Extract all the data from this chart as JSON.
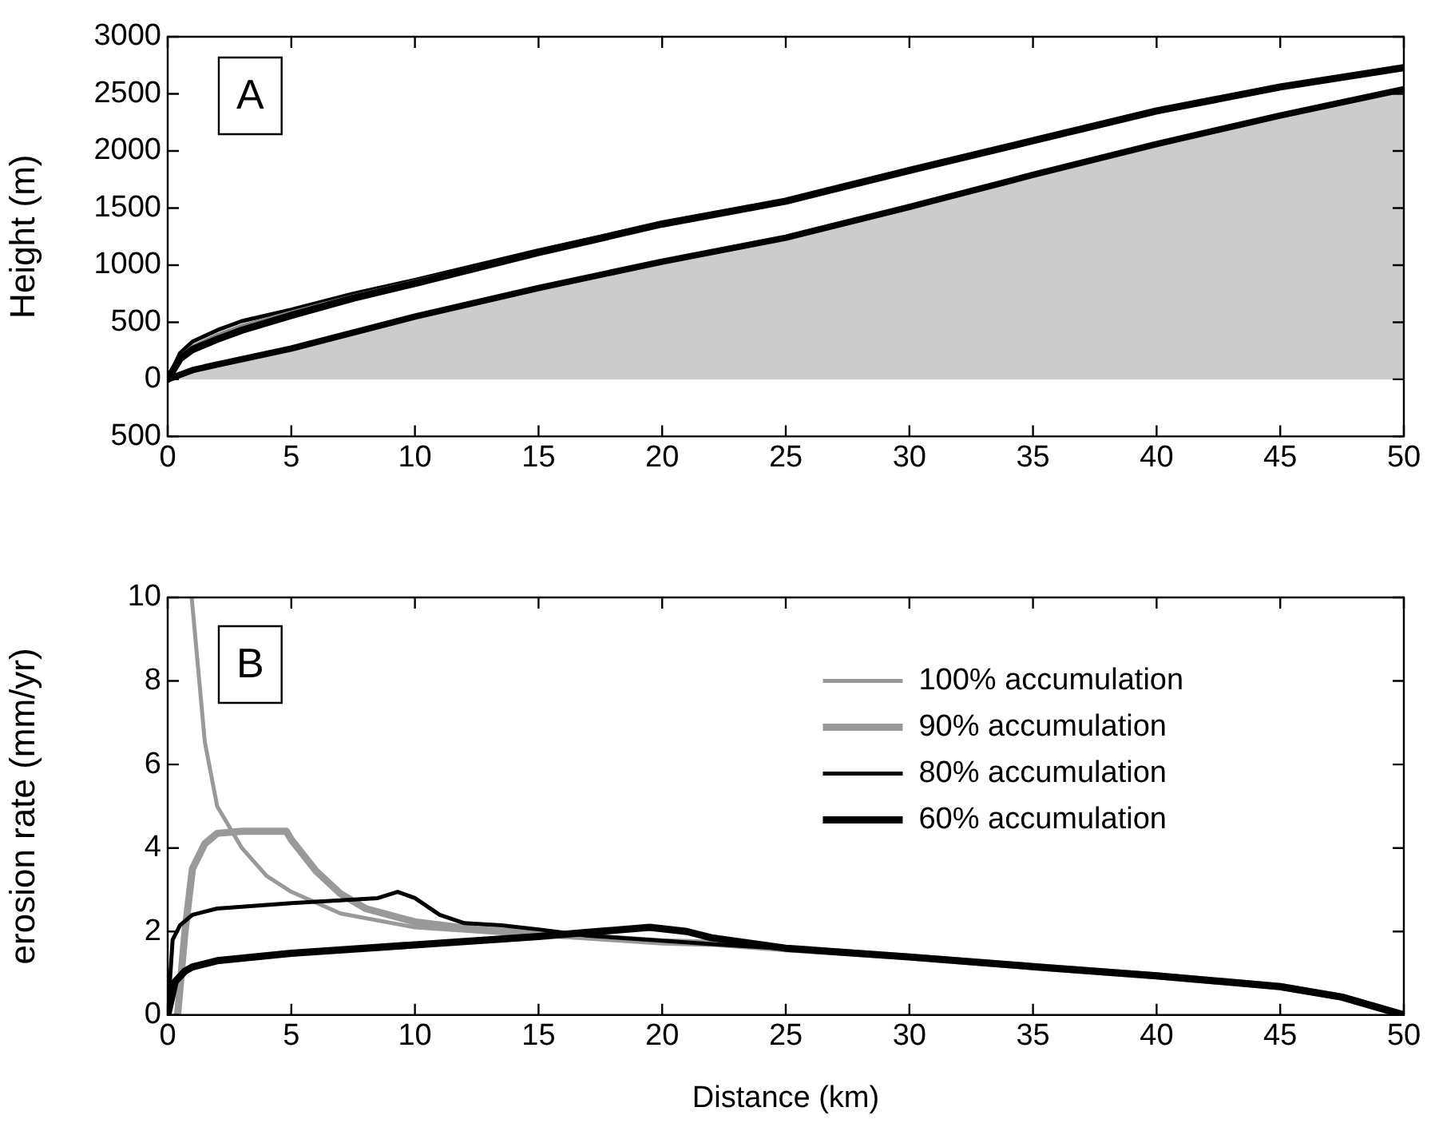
{
  "chart_data": [
    {
      "type": "line",
      "ylabel": "Height (m)",
      "annotations": [
        "A"
      ],
      "grid": false,
      "legend": false,
      "marker": "none",
      "line_style": "solid",
      "xlim": [
        0,
        50
      ],
      "xticks": [
        0,
        5,
        10,
        15,
        20,
        25,
        30,
        35,
        40,
        45,
        50
      ],
      "ylim": [
        -500,
        3000
      ],
      "yticks": [
        {
          "value": -500,
          "label": "500"
        },
        0,
        500,
        1000,
        1500,
        2000,
        2500,
        3000
      ],
      "series": [
        {
          "type": "area",
          "color": "#cccccc",
          "x": [
            0,
            0.5,
            1,
            2,
            5,
            10,
            15,
            20,
            25,
            30,
            35,
            40,
            45,
            50
          ],
          "values": [
            0,
            40,
            80,
            130,
            270,
            550,
            800,
            1030,
            1240,
            1510,
            1790,
            2060,
            2310,
            2540
          ]
        },
        {
          "color": "#000000",
          "x": [
            0,
            0.5,
            1,
            2,
            3,
            5,
            7.5,
            10,
            15,
            20
          ],
          "values": [
            0,
            230,
            330,
            430,
            510,
            610,
            750,
            870,
            1130,
            1370
          ]
        },
        {
          "color": "#888888",
          "x": [
            0,
            0.5,
            1,
            2,
            3,
            5,
            7.5,
            10,
            15
          ],
          "values": [
            0,
            200,
            290,
            390,
            470,
            590,
            730,
            860,
            1120
          ]
        },
        {
          "color": "#000000",
          "x": [
            0,
            0.5,
            1,
            2,
            3,
            5,
            7.5,
            10,
            15,
            20,
            25,
            30,
            35,
            40,
            45,
            50
          ],
          "values": [
            0,
            180,
            260,
            350,
            430,
            560,
            710,
            840,
            1110,
            1360,
            1560,
            1830,
            2090,
            2350,
            2560,
            2730
          ]
        }
      ]
    },
    {
      "type": "line",
      "xlabel": "Distance (km)",
      "ylabel": "erosion rate (mm/yr)",
      "annotations": [
        "B"
      ],
      "grid": false,
      "legend": "top right",
      "marker": "none",
      "line_style": "solid",
      "xlim": [
        0,
        50
      ],
      "xticks": [
        0,
        5,
        10,
        15,
        20,
        25,
        30,
        35,
        40,
        45,
        50
      ],
      "ylim": [
        0,
        10
      ],
      "yticks": [
        0,
        2,
        4,
        6,
        8,
        10
      ],
      "series": [
        {
          "name": "100% accumulation",
          "color": "#999999",
          "x": [
            0.97,
            1.5,
            2,
            3,
            4,
            5,
            7,
            10,
            15,
            20,
            22,
            25,
            30,
            35,
            40,
            45,
            47.5,
            50
          ],
          "values": [
            10,
            6.55,
            5.0,
            4.0,
            3.33,
            2.95,
            2.43,
            2.1,
            1.9,
            1.75,
            1.72,
            1.59,
            1.39,
            1.16,
            0.94,
            0.68,
            0.43,
            0
          ]
        },
        {
          "name": "90% accumulation",
          "color": "#999999",
          "x": [
            0.4,
            0.7,
            1,
            1.5,
            2,
            3,
            4.8,
            5,
            6,
            7,
            8,
            10,
            12.5,
            15,
            20,
            22,
            25,
            30,
            35,
            40,
            45,
            47.5,
            50
          ],
          "values": [
            0,
            2,
            3.5,
            4.1,
            4.35,
            4.4,
            4.4,
            4.2,
            3.45,
            2.9,
            2.55,
            2.23,
            2.05,
            1.95,
            1.75,
            1.72,
            1.59,
            1.39,
            1.16,
            0.94,
            0.68,
            0.43,
            0
          ]
        },
        {
          "name": "80% accumulation",
          "color": "#000000",
          "x": [
            0,
            0.2,
            0.5,
            1,
            2,
            5,
            8.5,
            9.3,
            10,
            11,
            12,
            13.5,
            15,
            17,
            20,
            22,
            25,
            30,
            35,
            40,
            45,
            47.5,
            50
          ],
          "values": [
            0,
            1.8,
            2.15,
            2.4,
            2.55,
            2.68,
            2.8,
            2.95,
            2.8,
            2.4,
            2.2,
            2.15,
            2.05,
            1.9,
            1.78,
            1.7,
            1.59,
            1.39,
            1.16,
            0.94,
            0.68,
            0.43,
            0
          ]
        },
        {
          "name": "60% accumulation",
          "color": "#000000",
          "x": [
            0,
            0.3,
            0.7,
            1,
            2,
            5,
            10,
            15,
            17,
            19.5,
            21,
            22,
            25,
            30,
            35,
            40,
            45,
            47.5,
            50
          ],
          "values": [
            0,
            0.8,
            1.05,
            1.15,
            1.3,
            1.48,
            1.68,
            1.88,
            1.98,
            2.1,
            2.0,
            1.85,
            1.6,
            1.39,
            1.16,
            0.94,
            0.68,
            0.43,
            0
          ]
        }
      ]
    }
  ]
}
